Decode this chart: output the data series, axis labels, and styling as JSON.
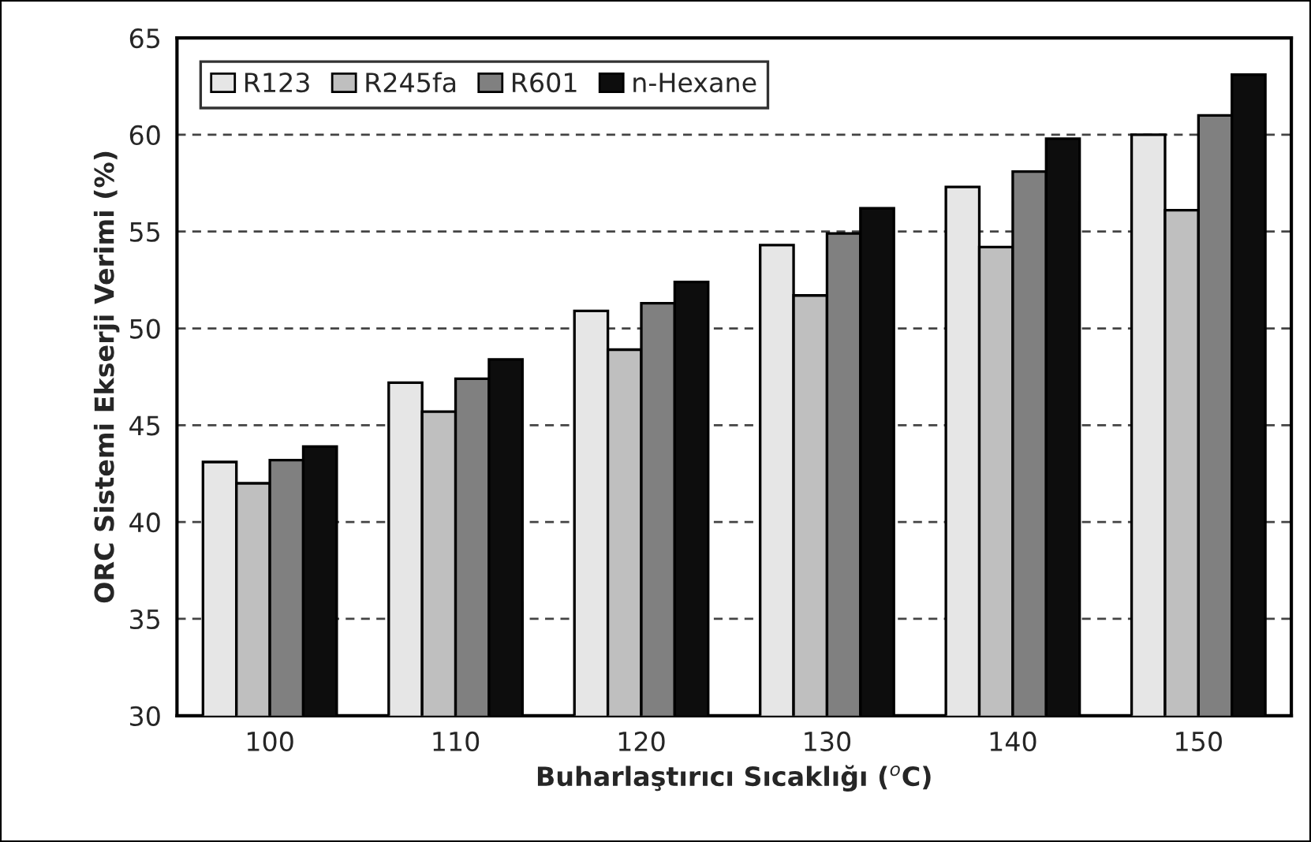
{
  "chart_data": {
    "type": "bar",
    "xlabel": "Buharlaştırıcı Sıcaklığı ($^{o}$C)",
    "ylabel": "ORC Sistemi Ekserji Verimi (%)",
    "categories": [
      "100",
      "110",
      "120",
      "130",
      "140",
      "150"
    ],
    "series": [
      {
        "name": "R123",
        "color": "#e6e6e6",
        "values": [
          43.1,
          47.2,
          50.9,
          54.3,
          57.3,
          60.0
        ]
      },
      {
        "name": "R245fa",
        "color": "#bfbfbf",
        "values": [
          42.0,
          45.7,
          48.9,
          51.7,
          54.2,
          56.1
        ]
      },
      {
        "name": "R601",
        "color": "#808080",
        "values": [
          43.2,
          47.4,
          51.3,
          54.9,
          58.1,
          61.0
        ]
      },
      {
        "name": "n-Hexane",
        "color": "#0d0d0d",
        "values": [
          43.9,
          48.4,
          52.4,
          56.2,
          59.8,
          63.1
        ]
      }
    ],
    "ylim": [
      30,
      65
    ],
    "yticks": [
      30,
      35,
      40,
      45,
      50,
      55,
      60,
      65
    ],
    "grid": "y",
    "legend": "top left"
  }
}
